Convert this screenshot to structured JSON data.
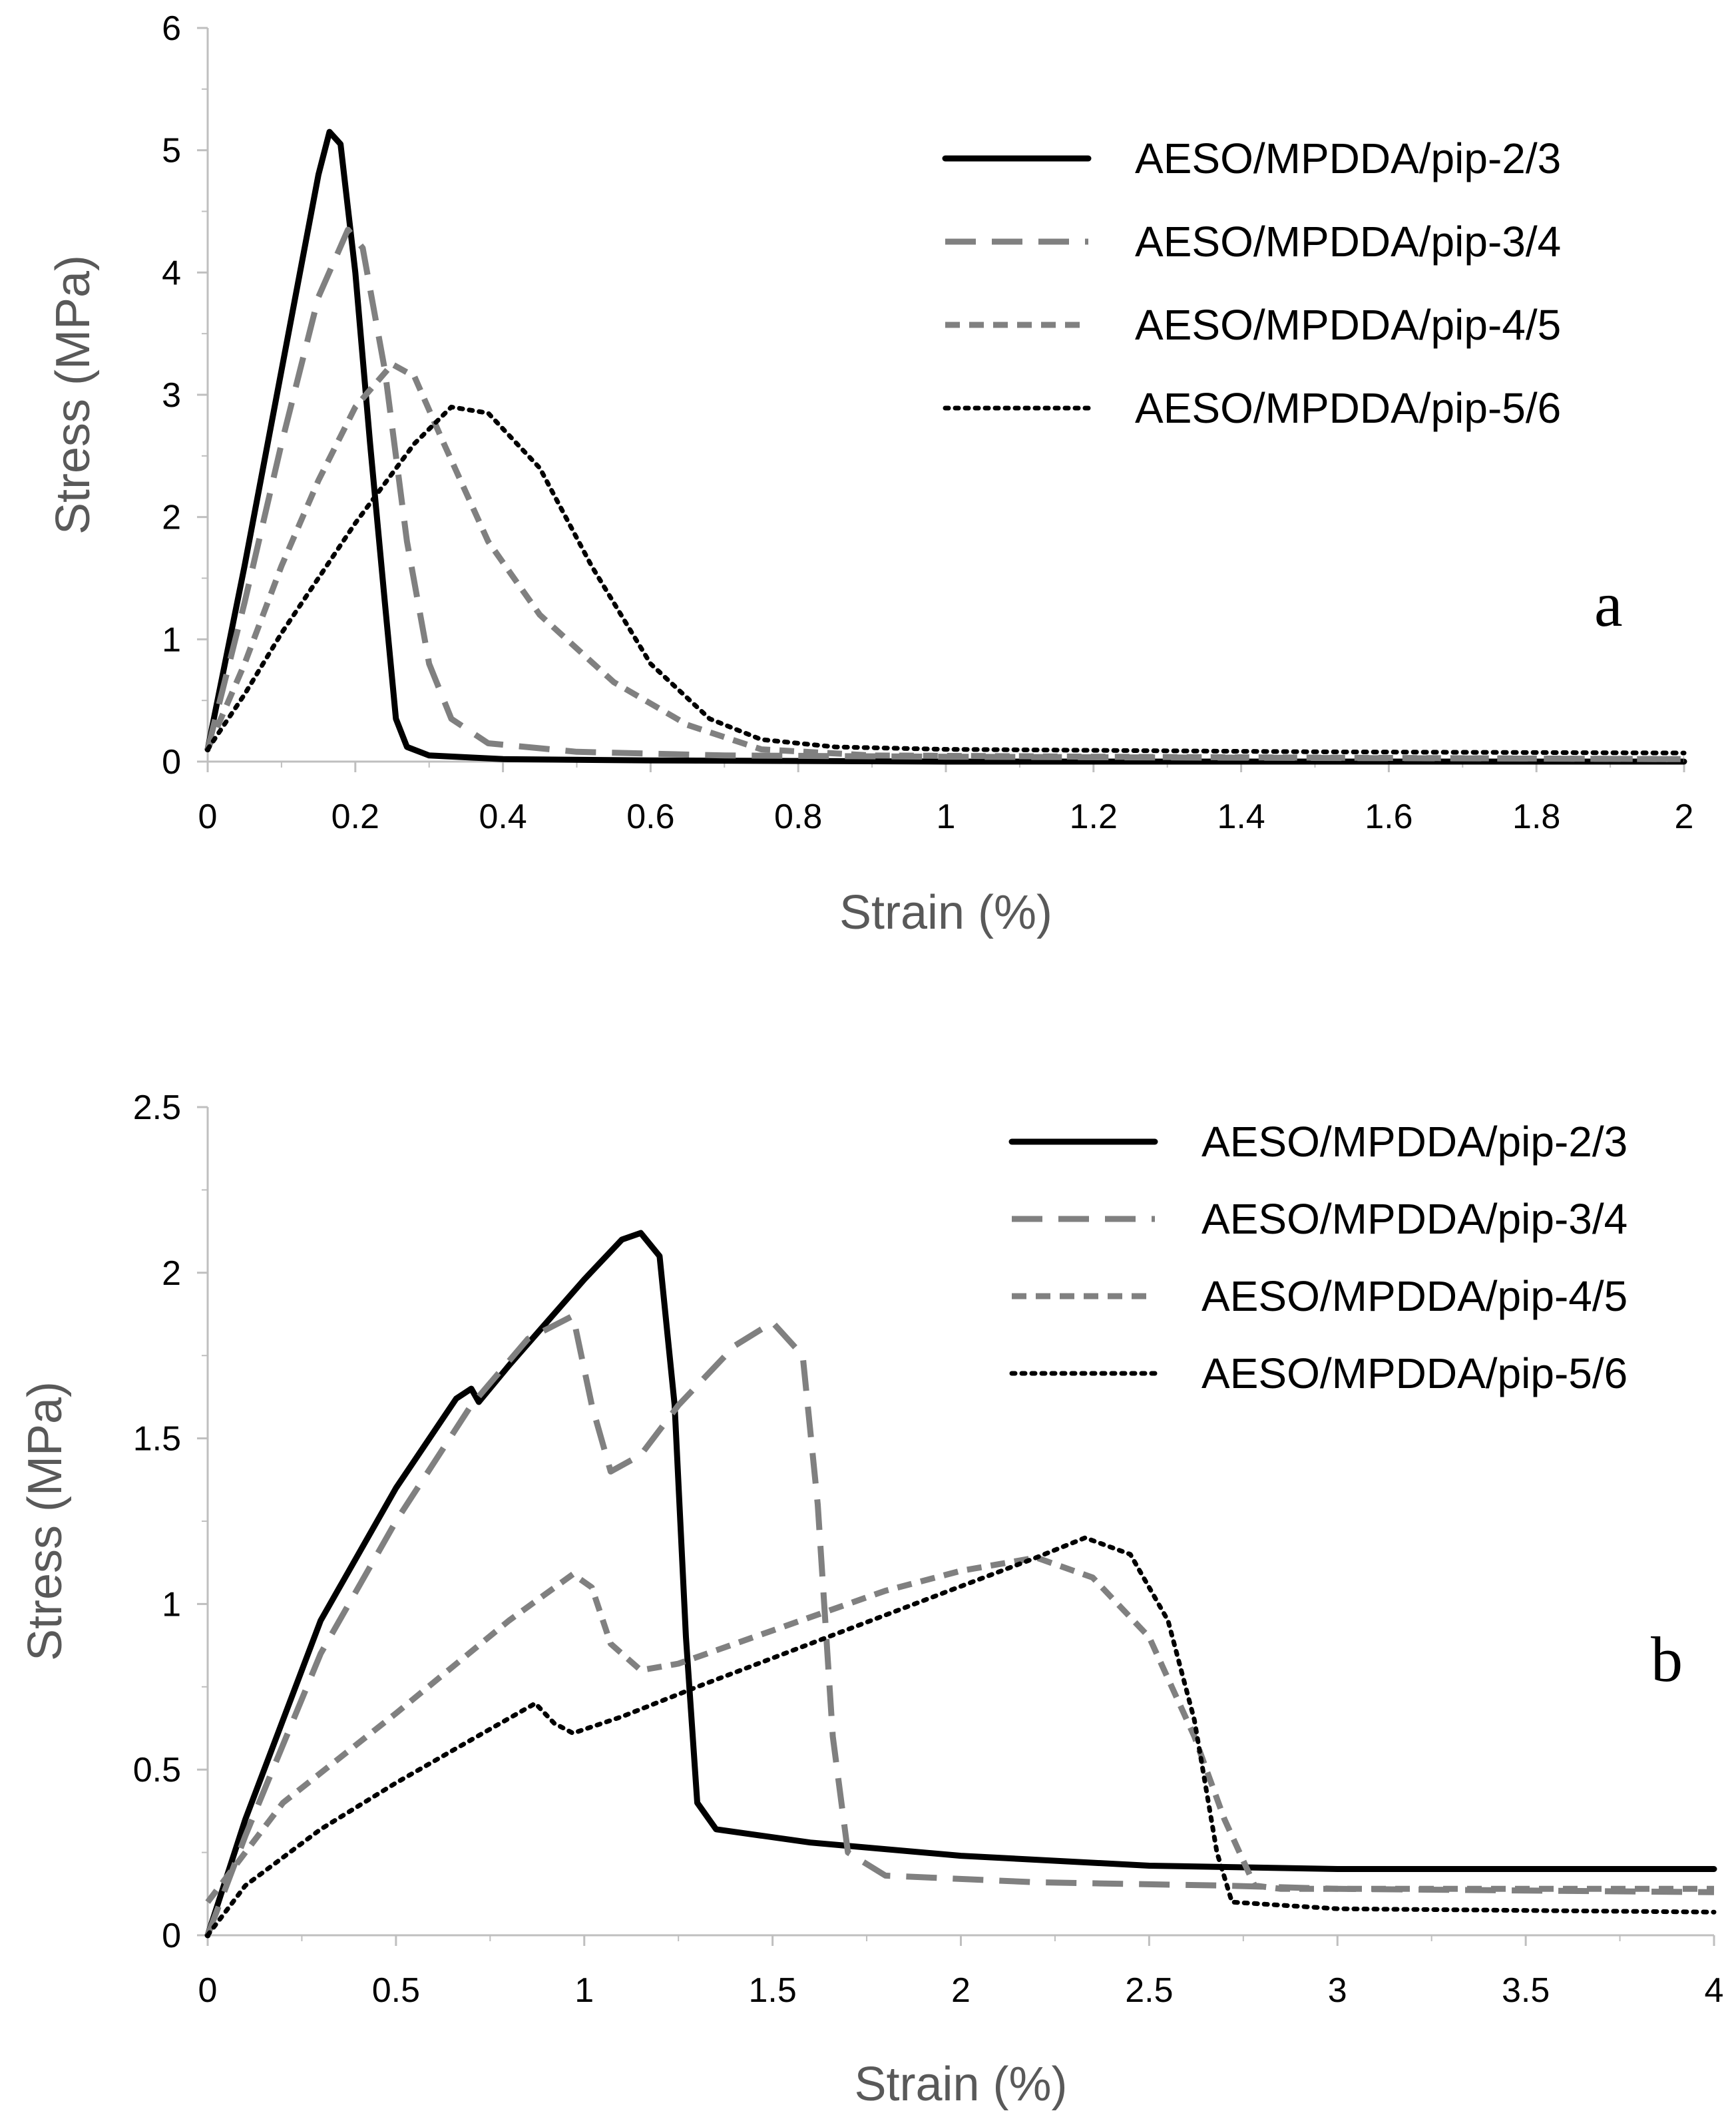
{
  "chart_data": [
    {
      "type": "line",
      "panel_label": "a",
      "xlabel": "Strain (%)",
      "ylabel": "Stress (MPa)",
      "xlim": [
        0,
        2
      ],
      "ylim": [
        0,
        6
      ],
      "x_ticks": [
        "0",
        "0.2",
        "0.4",
        "0.6",
        "0.8",
        "1",
        "1.2",
        "1.4",
        "1.6",
        "1.8",
        "2"
      ],
      "y_ticks": [
        "0",
        "1",
        "2",
        "3",
        "4",
        "5",
        "6"
      ],
      "legend_position": "top-right",
      "series": [
        {
          "name": "AESO/MPDDA/pip-2/3",
          "color": "#000000",
          "style": "solid",
          "points": [
            [
              0,
              0.1
            ],
            [
              0.05,
              1.6
            ],
            [
              0.1,
              3.2
            ],
            [
              0.15,
              4.8
            ],
            [
              0.165,
              5.15
            ],
            [
              0.18,
              5.05
            ],
            [
              0.2,
              4.0
            ],
            [
              0.22,
              2.6
            ],
            [
              0.24,
              1.3
            ],
            [
              0.255,
              0.35
            ],
            [
              0.27,
              0.12
            ],
            [
              0.3,
              0.05
            ],
            [
              0.4,
              0.02
            ],
            [
              0.6,
              0.01
            ],
            [
              1.0,
              0.0
            ],
            [
              2.0,
              0.0
            ]
          ]
        },
        {
          "name": "AESO/MPDDA/pip-3/4",
          "color": "#808080",
          "style": "dash",
          "points": [
            [
              0,
              0.1
            ],
            [
              0.05,
              1.3
            ],
            [
              0.1,
              2.6
            ],
            [
              0.15,
              3.8
            ],
            [
              0.19,
              4.35
            ],
            [
              0.21,
              4.2
            ],
            [
              0.24,
              3.2
            ],
            [
              0.27,
              1.8
            ],
            [
              0.3,
              0.8
            ],
            [
              0.33,
              0.35
            ],
            [
              0.38,
              0.15
            ],
            [
              0.5,
              0.08
            ],
            [
              0.7,
              0.05
            ],
            [
              1.0,
              0.04
            ],
            [
              2.0,
              0.02
            ]
          ]
        },
        {
          "name": "AESO/MPDDA/pip-4/5",
          "color": "#808080",
          "style": "short-dash",
          "points": [
            [
              0,
              0.1
            ],
            [
              0.05,
              0.8
            ],
            [
              0.1,
              1.6
            ],
            [
              0.15,
              2.3
            ],
            [
              0.2,
              2.9
            ],
            [
              0.25,
              3.25
            ],
            [
              0.28,
              3.15
            ],
            [
              0.32,
              2.6
            ],
            [
              0.38,
              1.8
            ],
            [
              0.45,
              1.2
            ],
            [
              0.55,
              0.65
            ],
            [
              0.65,
              0.3
            ],
            [
              0.75,
              0.1
            ],
            [
              0.9,
              0.05
            ],
            [
              1.2,
              0.04
            ],
            [
              2.0,
              0.02
            ]
          ]
        },
        {
          "name": "AESO/MPDDA/pip-5/6",
          "color": "#000000",
          "style": "dot",
          "points": [
            [
              0,
              0.1
            ],
            [
              0.05,
              0.55
            ],
            [
              0.1,
              1.05
            ],
            [
              0.2,
              1.95
            ],
            [
              0.28,
              2.6
            ],
            [
              0.33,
              2.9
            ],
            [
              0.38,
              2.85
            ],
            [
              0.45,
              2.4
            ],
            [
              0.52,
              1.6
            ],
            [
              0.6,
              0.8
            ],
            [
              0.68,
              0.35
            ],
            [
              0.75,
              0.18
            ],
            [
              0.85,
              0.12
            ],
            [
              1.0,
              0.1
            ],
            [
              1.5,
              0.08
            ],
            [
              2.0,
              0.07
            ]
          ]
        }
      ]
    },
    {
      "type": "line",
      "panel_label": "b",
      "xlabel": "Strain (%)",
      "ylabel": "Stress (MPa)",
      "xlim": [
        0,
        4
      ],
      "ylim": [
        0,
        2.5
      ],
      "x_ticks": [
        "0",
        "0.5",
        "1",
        "1.5",
        "2",
        "2.5",
        "3",
        "3.5",
        "4"
      ],
      "y_ticks": [
        "0",
        "0.5",
        "1",
        "1.5",
        "2",
        "2.5"
      ],
      "legend_position": "top-right",
      "series": [
        {
          "name": "AESO/MPDDA/pip-2/3",
          "color": "#000000",
          "style": "solid",
          "points": [
            [
              0,
              0.0
            ],
            [
              0.1,
              0.35
            ],
            [
              0.3,
              0.95
            ],
            [
              0.5,
              1.35
            ],
            [
              0.66,
              1.62
            ],
            [
              0.7,
              1.65
            ],
            [
              0.72,
              1.61
            ],
            [
              0.8,
              1.72
            ],
            [
              0.9,
              1.85
            ],
            [
              1.0,
              1.98
            ],
            [
              1.1,
              2.1
            ],
            [
              1.15,
              2.12
            ],
            [
              1.2,
              2.05
            ],
            [
              1.24,
              1.6
            ],
            [
              1.27,
              0.9
            ],
            [
              1.3,
              0.4
            ],
            [
              1.35,
              0.32
            ],
            [
              1.6,
              0.28
            ],
            [
              2.0,
              0.24
            ],
            [
              2.5,
              0.21
            ],
            [
              3.0,
              0.2
            ],
            [
              4.0,
              0.2
            ]
          ]
        },
        {
          "name": "AESO/MPDDA/pip-3/4",
          "color": "#808080",
          "style": "dash",
          "points": [
            [
              0,
              0.0
            ],
            [
              0.1,
              0.3
            ],
            [
              0.3,
              0.85
            ],
            [
              0.5,
              1.25
            ],
            [
              0.7,
              1.6
            ],
            [
              0.85,
              1.8
            ],
            [
              0.97,
              1.87
            ],
            [
              1.02,
              1.6
            ],
            [
              1.07,
              1.4
            ],
            [
              1.15,
              1.45
            ],
            [
              1.25,
              1.6
            ],
            [
              1.4,
              1.78
            ],
            [
              1.5,
              1.85
            ],
            [
              1.58,
              1.75
            ],
            [
              1.62,
              1.3
            ],
            [
              1.66,
              0.6
            ],
            [
              1.7,
              0.25
            ],
            [
              1.8,
              0.18
            ],
            [
              2.2,
              0.16
            ],
            [
              2.7,
              0.15
            ],
            [
              3.0,
              0.14
            ],
            [
              4.0,
              0.13
            ]
          ]
        },
        {
          "name": "AESO/MPDDA/pip-4/5",
          "color": "#808080",
          "style": "short-dash",
          "points": [
            [
              0,
              0.1
            ],
            [
              0.2,
              0.4
            ],
            [
              0.5,
              0.67
            ],
            [
              0.8,
              0.95
            ],
            [
              0.97,
              1.09
            ],
            [
              1.02,
              1.05
            ],
            [
              1.07,
              0.88
            ],
            [
              1.15,
              0.8
            ],
            [
              1.25,
              0.82
            ],
            [
              1.5,
              0.92
            ],
            [
              1.8,
              1.04
            ],
            [
              2.0,
              1.1
            ],
            [
              2.2,
              1.14
            ],
            [
              2.35,
              1.08
            ],
            [
              2.5,
              0.9
            ],
            [
              2.62,
              0.6
            ],
            [
              2.7,
              0.35
            ],
            [
              2.78,
              0.15
            ],
            [
              2.85,
              0.14
            ],
            [
              3.5,
              0.14
            ],
            [
              4.0,
              0.14
            ]
          ]
        },
        {
          "name": "AESO/MPDDA/pip-5/6",
          "color": "#000000",
          "style": "dot",
          "points": [
            [
              0,
              0.0
            ],
            [
              0.1,
              0.15
            ],
            [
              0.3,
              0.32
            ],
            [
              0.5,
              0.46
            ],
            [
              0.7,
              0.59
            ],
            [
              0.87,
              0.7
            ],
            [
              0.92,
              0.64
            ],
            [
              0.97,
              0.61
            ],
            [
              1.1,
              0.66
            ],
            [
              1.3,
              0.75
            ],
            [
              1.6,
              0.88
            ],
            [
              1.9,
              1.01
            ],
            [
              2.2,
              1.14
            ],
            [
              2.33,
              1.2
            ],
            [
              2.45,
              1.15
            ],
            [
              2.55,
              0.95
            ],
            [
              2.62,
              0.65
            ],
            [
              2.68,
              0.25
            ],
            [
              2.72,
              0.1
            ],
            [
              3.0,
              0.08
            ],
            [
              4.0,
              0.07
            ]
          ]
        }
      ]
    }
  ]
}
